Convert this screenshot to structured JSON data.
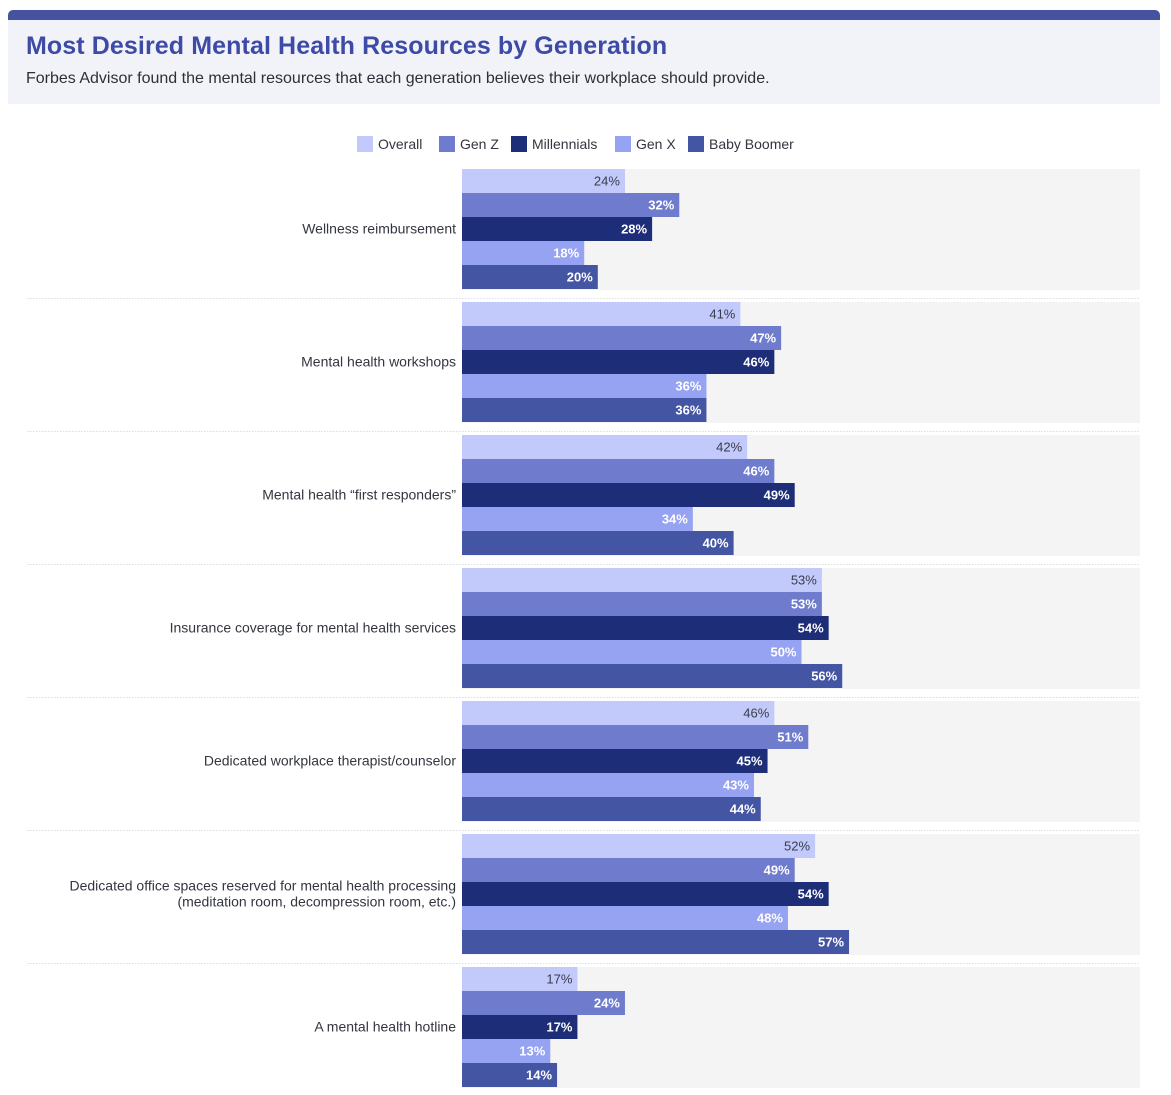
{
  "header": {
    "title": "Most Desired Mental Health Resources by Generation",
    "subtitle": "Forbes Advisor found the mental resources that each generation believes their workplace should provide."
  },
  "chart_data": {
    "type": "bar",
    "orientation": "horizontal",
    "title": "Most Desired Mental Health Resources by Generation",
    "value_suffix": "%",
    "xlim": [
      0,
      100
    ],
    "legend_position": "top-center",
    "grid": false,
    "categories": [
      [
        "Wellness reimbursement"
      ],
      [
        "Mental health workshops"
      ],
      [
        "Mental health “first responders”"
      ],
      [
        "Insurance coverage for mental health services"
      ],
      [
        "Dedicated workplace therapist/counselor"
      ],
      [
        "Dedicated office spaces reserved for mental health processing",
        "(meditation room, decompression room, etc.)"
      ],
      [
        "A mental health hotline"
      ]
    ],
    "series": [
      {
        "name": "Overall",
        "color": "#c2c9fb",
        "label_color": "#3a3d4a",
        "values": [
          24,
          41,
          42,
          53,
          46,
          52,
          17
        ]
      },
      {
        "name": "Gen Z",
        "color": "#6f7cce",
        "label_color": "#ffffff",
        "values": [
          32,
          47,
          46,
          53,
          51,
          49,
          24
        ]
      },
      {
        "name": "Millennials",
        "color": "#1d2d78",
        "label_color": "#ffffff",
        "values": [
          28,
          46,
          49,
          54,
          45,
          54,
          17
        ]
      },
      {
        "name": "Gen X",
        "color": "#96a2f2",
        "label_color": "#ffffff",
        "values": [
          18,
          36,
          34,
          50,
          43,
          48,
          13
        ]
      },
      {
        "name": "Baby Boomer",
        "color": "#4455a4",
        "label_color": "#ffffff",
        "values": [
          20,
          36,
          40,
          56,
          44,
          57,
          14
        ]
      }
    ]
  }
}
